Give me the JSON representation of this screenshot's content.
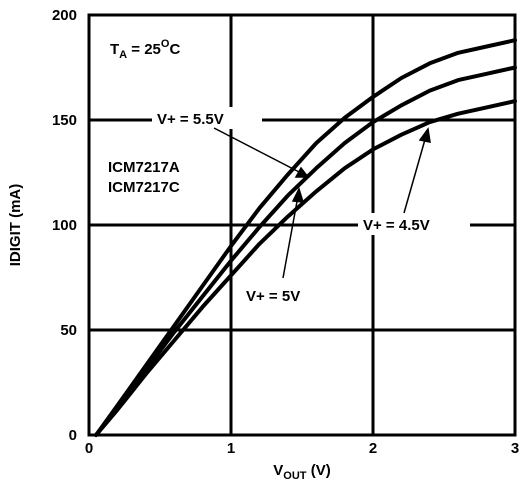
{
  "chart_data": {
    "type": "line",
    "xlabel_main": "V",
    "xlabel_sub": "OUT",
    "xlabel_unit": " (V)",
    "ylabel": "IDIGIT (mA)",
    "xlim": [
      0,
      3
    ],
    "ylim": [
      0,
      200
    ],
    "xticks": [
      "0",
      "1",
      "2",
      "3"
    ],
    "yticks": [
      "0",
      "50",
      "100",
      "150",
      "200"
    ],
    "grid": true,
    "series": [
      {
        "name": "V+ = 5.5V",
        "x": [
          0.05,
          0.2,
          0.4,
          0.6,
          0.8,
          1.0,
          1.2,
          1.4,
          1.6,
          1.8,
          2.0,
          2.2,
          2.4,
          2.6,
          2.8,
          3.0
        ],
        "y": [
          0,
          14,
          33,
          52,
          71,
          90,
          108,
          124,
          139,
          151,
          161,
          170,
          177,
          182,
          185,
          188
        ]
      },
      {
        "name": "V+ = 5V",
        "x": [
          0.05,
          0.2,
          0.4,
          0.6,
          0.8,
          1.0,
          1.2,
          1.4,
          1.6,
          1.8,
          2.0,
          2.2,
          2.4,
          2.6,
          2.8,
          3.0
        ],
        "y": [
          0,
          13,
          31,
          49,
          66,
          83,
          99,
          114,
          127,
          139,
          149,
          157,
          164,
          169,
          172,
          175
        ]
      },
      {
        "name": "V+ = 4.5V",
        "x": [
          0.05,
          0.2,
          0.4,
          0.6,
          0.8,
          1.0,
          1.2,
          1.4,
          1.6,
          1.8,
          2.0,
          2.2,
          2.4,
          2.6,
          2.8,
          3.0
        ],
        "y": [
          0,
          12,
          29,
          45,
          61,
          76,
          91,
          104,
          116,
          127,
          136,
          143,
          149,
          153,
          156,
          159
        ]
      }
    ],
    "annotations": {
      "ta_main": "T",
      "ta_sub": "A",
      "ta_value": " = 25",
      "ta_sup": "O",
      "ta_unit": "C",
      "device_1": "ICM7217A",
      "device_2": "ICM7217C",
      "label_55": "V+ = 5.5V",
      "label_5": "V+ = 5V",
      "label_45": "V+ = 4.5V"
    }
  }
}
